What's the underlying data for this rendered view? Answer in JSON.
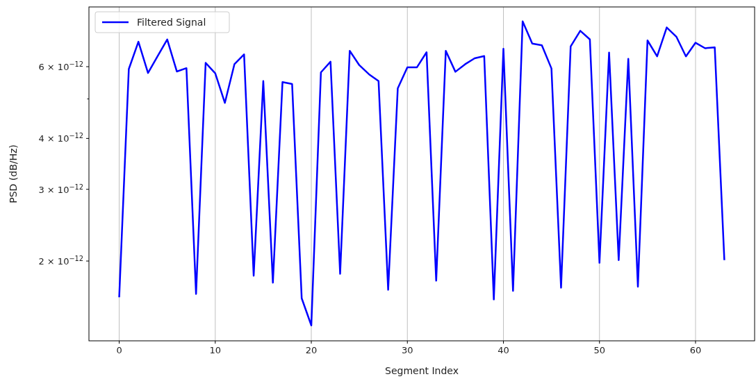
{
  "chart_data": {
    "type": "line",
    "xlabel": "Segment Index",
    "ylabel": "PSD (dB/Hz)",
    "log": "y",
    "grid": "x",
    "legend": "top left",
    "xlim": [
      -3.15,
      66.15
    ],
    "xticks": [
      0,
      10,
      20,
      30,
      40,
      50,
      60
    ],
    "ylim": [
      1.274e-12,
      8.41e-12
    ],
    "yticks": [
      {
        "value": 2e-12,
        "label": "2 × 10$^{−12}$"
      },
      {
        "value": 3e-12,
        "label": "3 × 10$^{−12}$"
      },
      {
        "value": 4e-12,
        "label": "4 × 10$^{−12}$"
      },
      {
        "value": 5e-12,
        "label": null
      },
      {
        "value": 6e-12,
        "label": "6 × 10$^{−12}$"
      }
    ],
    "x": [
      0,
      1,
      2,
      3,
      4,
      5,
      6,
      7,
      8,
      9,
      10,
      11,
      12,
      13,
      14,
      15,
      16,
      17,
      18,
      19,
      20,
      21,
      22,
      23,
      24,
      25,
      26,
      27,
      28,
      29,
      30,
      31,
      32,
      33,
      34,
      35,
      36,
      37,
      38,
      39,
      40,
      41,
      42,
      43,
      44,
      45,
      46,
      47,
      48,
      49,
      50,
      51,
      52,
      53,
      54,
      55,
      56,
      57,
      58,
      59,
      60,
      61,
      62,
      63
    ],
    "series": [
      {
        "name": "Filtered Signal",
        "color": "#0000ff",
        "values": [
          1.63e-12,
          5.92e-12,
          6.91e-12,
          5.79e-12,
          6.37e-12,
          7e-12,
          5.84e-12,
          5.95e-12,
          1.66e-12,
          6.13e-12,
          5.78e-12,
          4.89e-12,
          6.09e-12,
          6.43e-12,
          1.84e-12,
          5.53e-12,
          1.77e-12,
          5.5e-12,
          5.44e-12,
          1.62e-12,
          1.39e-12,
          5.81e-12,
          6.17e-12,
          1.86e-12,
          6.56e-12,
          6.05e-12,
          5.75e-12,
          5.53e-12,
          1.7e-12,
          5.31e-12,
          5.98e-12,
          5.98e-12,
          6.51e-12,
          1.79e-12,
          6.56e-12,
          5.83e-12,
          6.08e-12,
          6.29e-12,
          6.37e-12,
          1.61e-12,
          6.64e-12,
          1.69e-12,
          7.75e-12,
          6.84e-12,
          6.77e-12,
          5.94e-12,
          1.72e-12,
          6.73e-12,
          7.35e-12,
          7e-12,
          1.98e-12,
          6.5e-12,
          2.01e-12,
          6.27e-12,
          1.73e-12,
          6.96e-12,
          6.36e-12,
          7.49e-12,
          7.11e-12,
          6.36e-12,
          6.87e-12,
          6.66e-12,
          6.69e-12,
          2.01e-12
        ]
      }
    ]
  }
}
